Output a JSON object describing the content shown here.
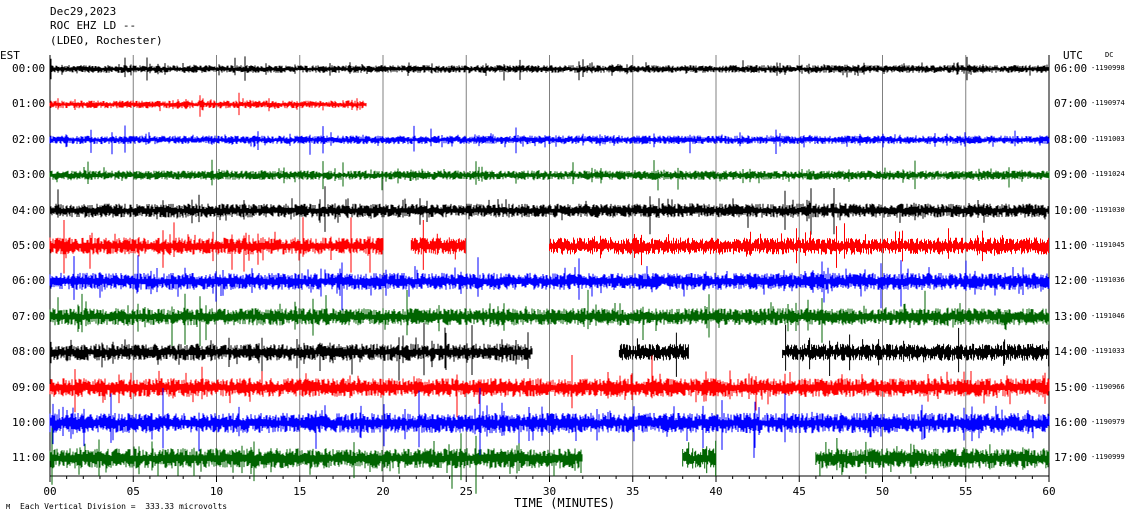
{
  "header": {
    "date": "Dec29,2023",
    "station": "ROC EHZ LD --",
    "network": "(LDEO, Rochester)"
  },
  "left_axis_label": "EST",
  "right_axis_label": "UTC",
  "dc_label": "DC",
  "footer": {
    "scale_note": "Each Vertical Division =  333.33 microvolts",
    "marker": "M",
    "xlabel": "TIME (MINUTES)"
  },
  "colors": {
    "black": "#000000",
    "red": "#ff0000",
    "blue": "#0000ff",
    "green": "#006400",
    "grid": "#808080"
  },
  "chart_data": {
    "type": "line",
    "title": "ROC EHZ LD --",
    "xlabel": "TIME (MINUTES)",
    "ylabel": "",
    "xlim": [
      0,
      60
    ],
    "x_ticks": [
      "00",
      "05",
      "10",
      "15",
      "20",
      "25",
      "30",
      "35",
      "40",
      "45",
      "50",
      "55",
      "60"
    ],
    "grid": true,
    "rows": [
      {
        "est": "00:00",
        "utc": "06:00",
        "dc": "-1190998",
        "color": "black",
        "segments": [
          [
            0,
            60
          ]
        ],
        "amp": 1
      },
      {
        "est": "01:00",
        "utc": "07:00",
        "dc": "-1190974",
        "color": "red",
        "segments": [
          [
            0,
            19
          ]
        ],
        "amp": 1
      },
      {
        "est": "02:00",
        "utc": "08:00",
        "dc": "-1191003",
        "color": "blue",
        "segments": [
          [
            0,
            60
          ]
        ],
        "amp": 1.1
      },
      {
        "est": "03:00",
        "utc": "09:00",
        "dc": "-1191024",
        "color": "green",
        "segments": [
          [
            0,
            60
          ]
        ],
        "amp": 1.2
      },
      {
        "est": "04:00",
        "utc": "10:00",
        "dc": "-1191030",
        "color": "black",
        "segments": [
          [
            0,
            60
          ]
        ],
        "amp": 1.8
      },
      {
        "est": "05:00",
        "utc": "11:00",
        "dc": "-1191045",
        "color": "red",
        "segments": [
          [
            0,
            20
          ],
          [
            21.7,
            25
          ],
          [
            30,
            60
          ]
        ],
        "amp": 2.2
      },
      {
        "est": "06:00",
        "utc": "12:00",
        "dc": "-1191036",
        "color": "blue",
        "segments": [
          [
            0,
            60
          ]
        ],
        "amp": 2.2
      },
      {
        "est": "07:00",
        "utc": "13:00",
        "dc": "-1191046",
        "color": "green",
        "segments": [
          [
            0,
            60
          ]
        ],
        "amp": 2.2
      },
      {
        "est": "08:00",
        "utc": "14:00",
        "dc": "-1191033",
        "color": "black",
        "segments": [
          [
            0,
            29
          ],
          [
            34.2,
            38.4
          ],
          [
            44,
            60
          ]
        ],
        "amp": 2.2
      },
      {
        "est": "09:00",
        "utc": "15:00",
        "dc": "-1190966",
        "color": "red",
        "segments": [
          [
            0,
            60
          ]
        ],
        "amp": 2.4
      },
      {
        "est": "10:00",
        "utc": "16:00",
        "dc": "-1190979",
        "color": "blue",
        "segments": [
          [
            0,
            60
          ]
        ],
        "amp": 2.6
      },
      {
        "est": "11:00",
        "utc": "17:00",
        "dc": "-1190999",
        "color": "green",
        "segments": [
          [
            0,
            32
          ],
          [
            38,
            40
          ],
          [
            46,
            60
          ]
        ],
        "amp": 2.6
      }
    ]
  }
}
